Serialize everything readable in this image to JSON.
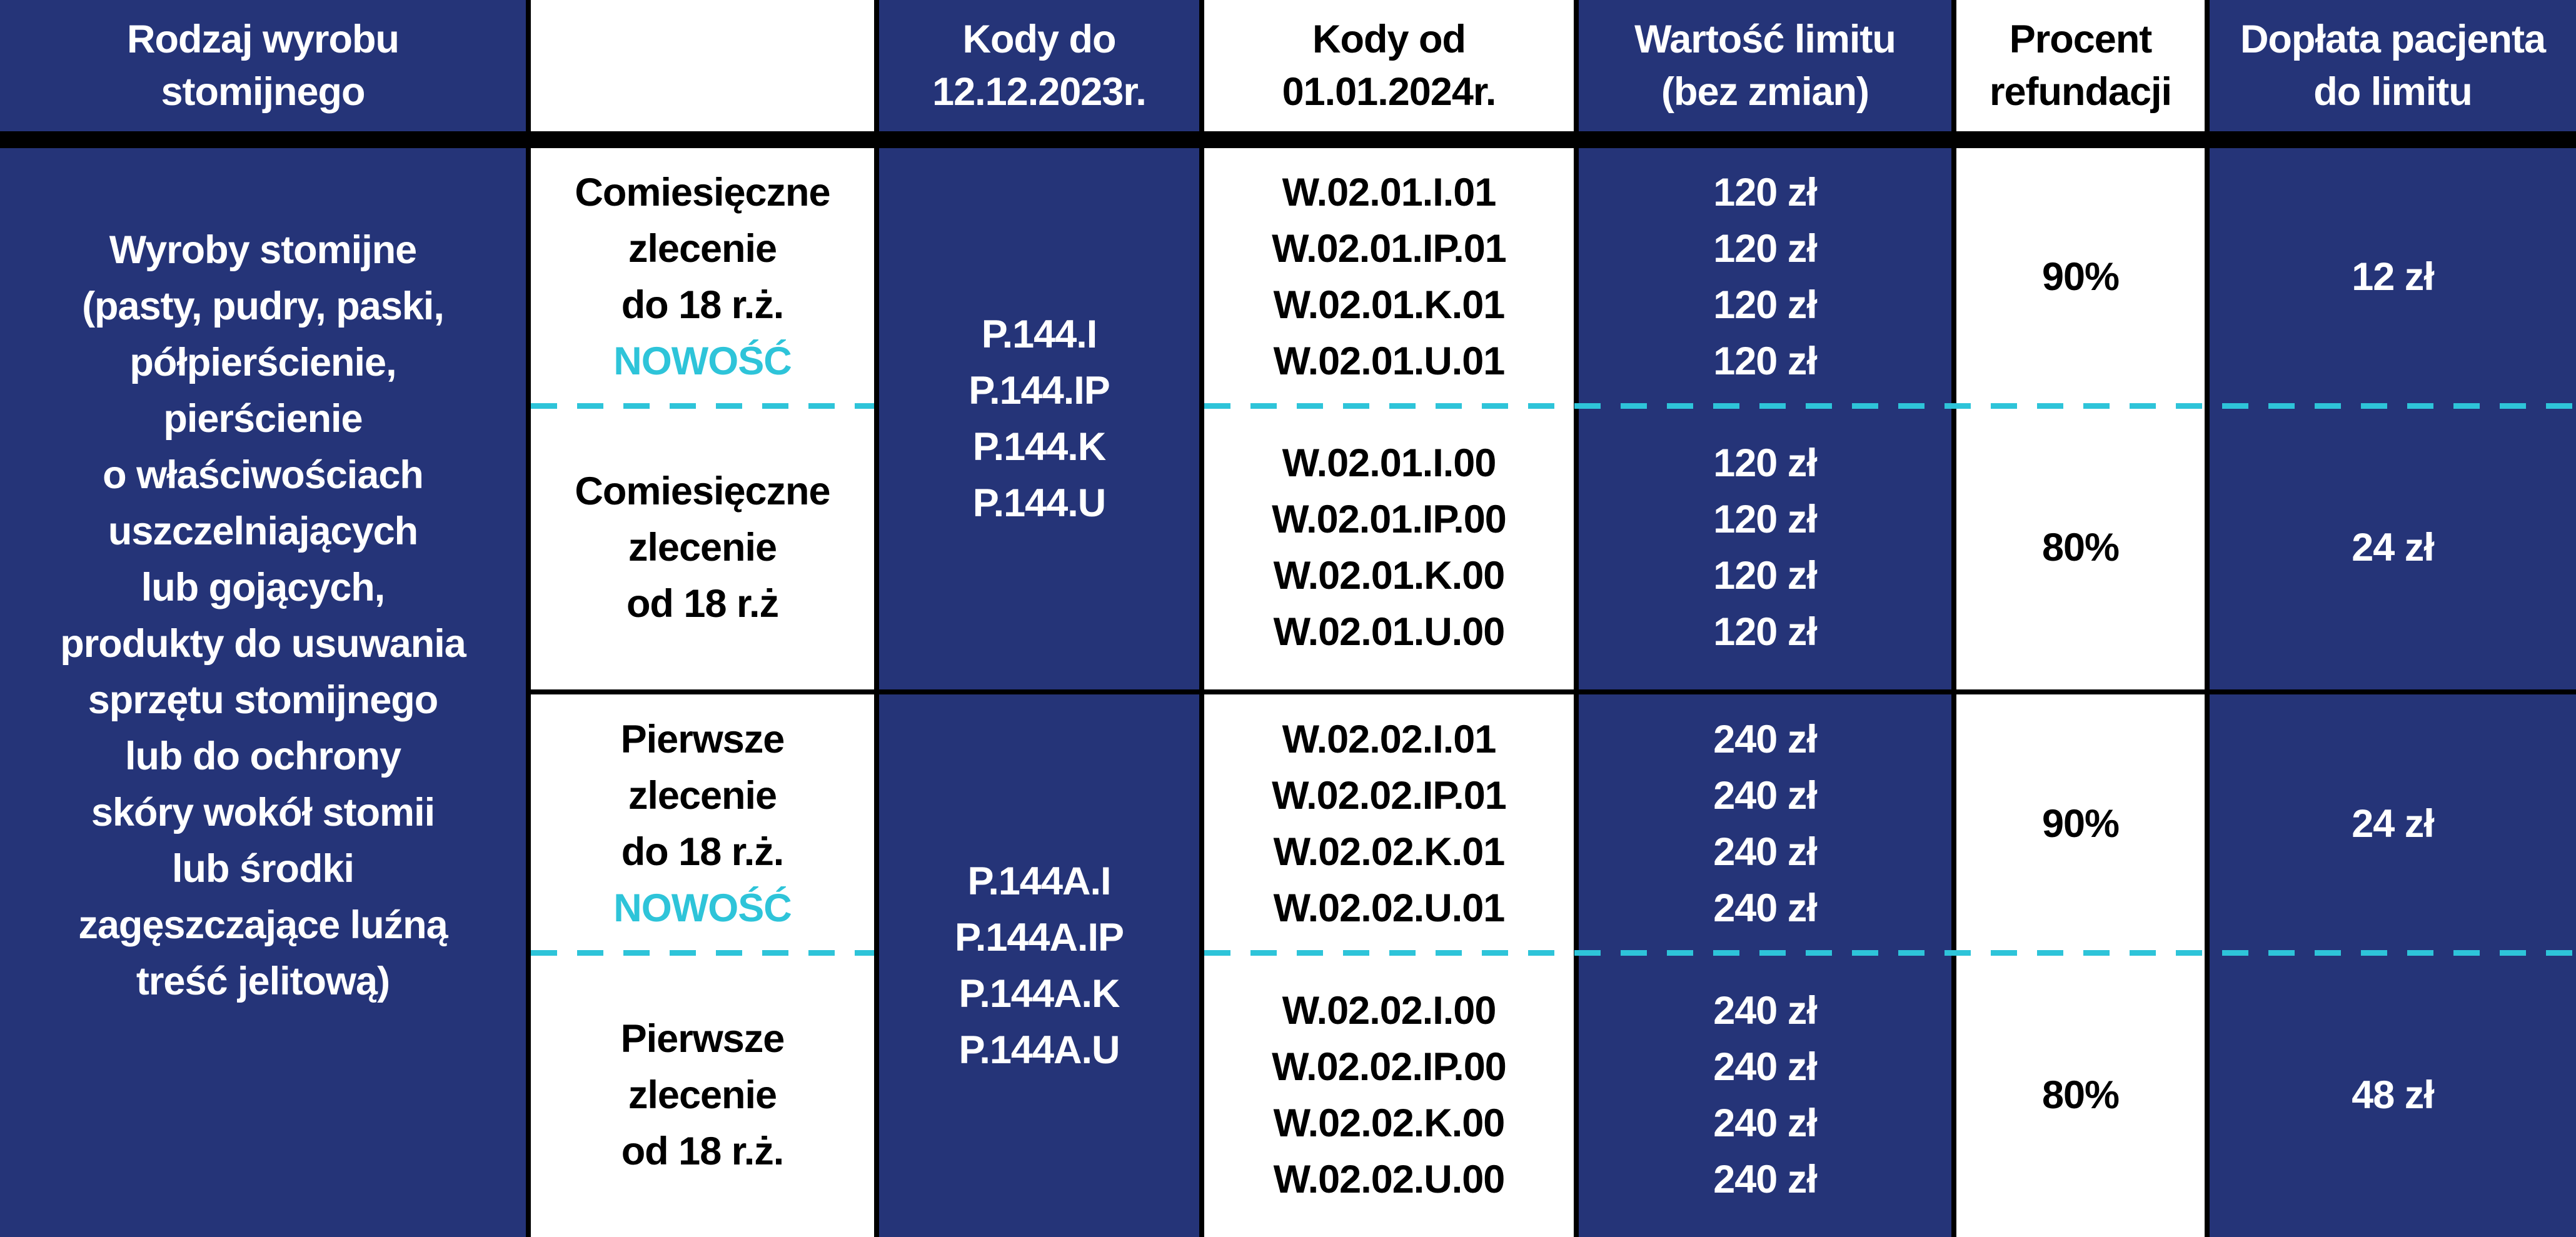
{
  "colors": {
    "navy": "#253478",
    "accent": "#2ec4d9",
    "separator": "#000000"
  },
  "header": [
    [
      "Rodzaj wyrobu",
      "stomijnego"
    ],
    [],
    [
      "Kody do",
      "12.12.2023r."
    ],
    [
      "Kody od",
      "01.01.2024r."
    ],
    [
      "Wartość limitu",
      "(bez zmian)"
    ],
    [
      "Procent",
      "refundacji"
    ],
    [
      "Dopłata pacjenta",
      "do limitu"
    ]
  ],
  "product": [
    "Wyroby stomijne",
    "(pasty, pudry, paski,",
    "półpierścienie,",
    "pierścienie",
    "o właściwościach",
    "uszczelniających",
    "lub gojących,",
    "produkty do usuwania",
    "sprzętu stomijnego",
    "lub do ochrony",
    "skóry wokół stomii",
    "lub środki",
    "zagęszczające luźną",
    "treść jelitową)"
  ],
  "groups": [
    {
      "old_codes": [
        "P.144.I",
        "P.144.IP",
        "P.144.K",
        "P.144.U"
      ],
      "subrows": [
        {
          "order": [
            "Comiesięczne",
            "zlecenie",
            "do 18 r.ż."
          ],
          "badge": "NOWOŚĆ",
          "codes": [
            "W.02.01.I.01",
            "W.02.01.IP.01",
            "W.02.01.K.01",
            "W.02.01.U.01"
          ],
          "limits": [
            "120 zł",
            "120 zł",
            "120 zł",
            "120 zł"
          ],
          "percent": "90%",
          "copay": "12 zł"
        },
        {
          "order": [
            "Comiesięczne",
            "zlecenie",
            "od 18 r.ż"
          ],
          "badge": "",
          "codes": [
            "W.02.01.I.00",
            "W.02.01.IP.00",
            "W.02.01.K.00",
            "W.02.01.U.00"
          ],
          "limits": [
            "120 zł",
            "120 zł",
            "120 zł",
            "120 zł"
          ],
          "percent": "80%",
          "copay": "24 zł"
        }
      ]
    },
    {
      "old_codes": [
        "P.144A.I",
        "P.144A.IP",
        "P.144A.K",
        "P.144A.U"
      ],
      "subrows": [
        {
          "order": [
            "Pierwsze",
            "zlecenie",
            "do 18 r.ż."
          ],
          "badge": "NOWOŚĆ",
          "codes": [
            "W.02.02.I.01",
            "W.02.02.IP.01",
            "W.02.02.K.01",
            "W.02.02.U.01"
          ],
          "limits": [
            "240 zł",
            "240 zł",
            "240 zł",
            "240 zł"
          ],
          "percent": "90%",
          "copay": "24 zł"
        },
        {
          "order": [
            "Pierwsze",
            "zlecenie",
            "od 18 r.ż."
          ],
          "badge": "",
          "codes": [
            "W.02.02.I.00",
            "W.02.02.IP.00",
            "W.02.02.K.00",
            "W.02.02.U.00"
          ],
          "limits": [
            "240 zł",
            "240 zł",
            "240 zł",
            "240 zł"
          ],
          "percent": "80%",
          "copay": "48 zł"
        }
      ]
    }
  ]
}
